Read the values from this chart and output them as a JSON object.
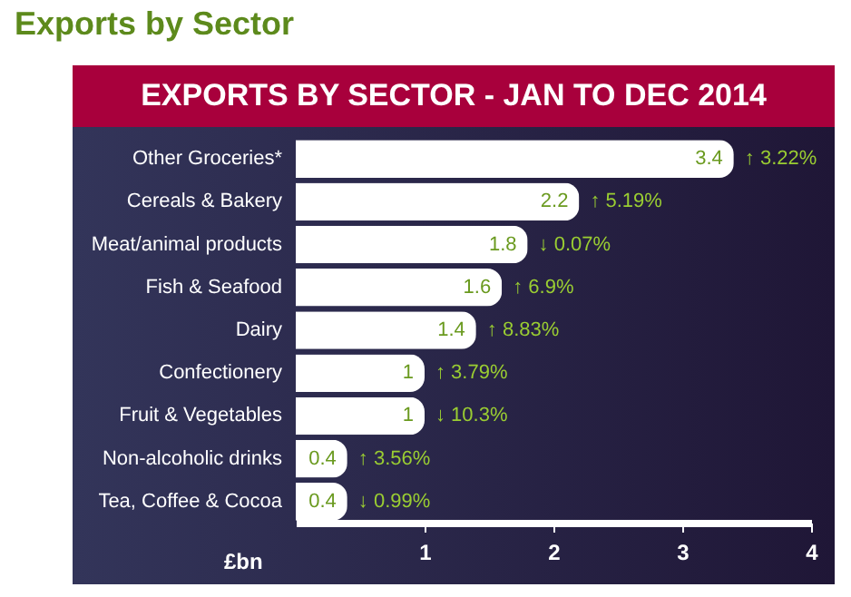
{
  "chart_data": {
    "type": "bar",
    "orientation": "horizontal",
    "title": "Exports by Sector",
    "subtitle": "EXPORTS BY SECTOR - JAN TO DEC 2014",
    "xlabel": "£bn",
    "categories": [
      "Other Groceries*",
      "Cereals & Bakery",
      "Meat/animal products",
      "Fish & Seafood",
      "Dairy",
      "Confectionery",
      "Fruit & Vegetables",
      "Non-alcoholic drinks",
      "Tea, Coffee & Cocoa"
    ],
    "series": [
      {
        "color": "#ffffff",
        "values": [
          3.4,
          2.2,
          1.8,
          1.6,
          1.4,
          1,
          1,
          0.4,
          0.4
        ]
      }
    ],
    "xlim": [
      0,
      4
    ],
    "xticks": [
      1,
      2,
      3,
      4
    ],
    "data_labels": true,
    "grid": false,
    "annotations": [
      {
        "text": "↑ 3.22%",
        "x": 3.4,
        "y": "Other Groceries*"
      },
      {
        "text": "↑ 5.19%",
        "x": 2.2,
        "y": "Cereals & Bakery"
      },
      {
        "text": "↓ 0.07%",
        "x": 1.8,
        "y": "Meat/animal products"
      },
      {
        "text": "↑ 6.9%",
        "x": 1.6,
        "y": "Fish & Seafood"
      },
      {
        "text": "↑ 8.83%",
        "x": 1.4,
        "y": "Dairy"
      },
      {
        "text": "↑ 3.79%",
        "x": 1,
        "y": "Confectionery"
      },
      {
        "text": "↓ 10.3%",
        "x": 1,
        "y": "Fruit & Vegetables"
      },
      {
        "text": "↑ 3.56%",
        "x": 0.4,
        "y": "Non-alcoholic drinks"
      },
      {
        "text": "↓ 0.99%",
        "x": 0.4,
        "y": "Tea, Coffee & Cocoa"
      }
    ]
  }
}
